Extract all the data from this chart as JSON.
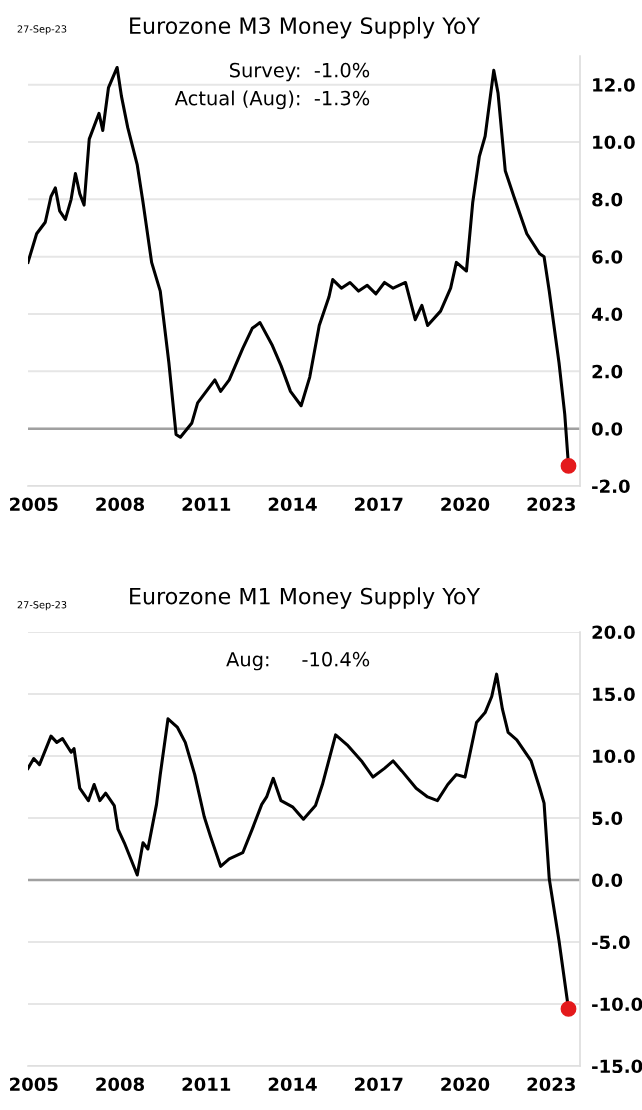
{
  "chart_data": [
    {
      "type": "line",
      "title": "Eurozone M3 Money Supply YoY",
      "annotations": [
        "27-Sep-23",
        "Survey:  -1.0%",
        "Actual (Aug):  -1.3%"
      ],
      "xlim": [
        2004.8,
        2024
      ],
      "xticks": [
        2005,
        2008,
        2011,
        2014,
        2017,
        2020,
        2023
      ],
      "ylim": [
        -2,
        13
      ],
      "yticks": [
        {
          "value": -2,
          "label": "-2.0"
        },
        {
          "value": 0,
          "label": "0.0"
        },
        {
          "value": 2,
          "label": "2.0"
        },
        {
          "value": 4,
          "label": "4.0"
        },
        {
          "value": 6,
          "label": "6.0"
        },
        {
          "value": 8,
          "label": "8.0"
        },
        {
          "value": 10,
          "label": "10.0"
        },
        {
          "value": 12,
          "label": "12.0"
        }
      ],
      "grid": "y",
      "ref_lines": [
        {
          "axis": "y",
          "value": 0,
          "color": "#a0a0a0"
        }
      ],
      "series": [
        {
          "color": "#000000",
          "x": [
            2004.8,
            2005.1,
            2005.4,
            2005.6,
            2005.75,
            2005.9,
            2006.1,
            2006.3,
            2006.45,
            2006.6,
            2006.75,
            2006.93,
            2007.27,
            2007.4,
            2007.6,
            2007.9,
            2008.05,
            2008.27,
            2008.6,
            2008.8,
            2009.1,
            2009.4,
            2009.7,
            2009.95,
            2010.1,
            2010.5,
            2010.7,
            2011.3,
            2011.5,
            2011.8,
            2012.27,
            2012.6,
            2012.87,
            2013.3,
            2013.6,
            2013.93,
            2014.3,
            2014.6,
            2014.93,
            2015.27,
            2015.4,
            2015.7,
            2016.0,
            2016.3,
            2016.6,
            2016.9,
            2017.2,
            2017.5,
            2017.93,
            2018.27,
            2018.5,
            2018.7,
            2019.15,
            2019.5,
            2019.7,
            2020.05,
            2020.27,
            2020.5,
            2020.7,
            2021.0,
            2021.15,
            2021.4,
            2021.7,
            2022.15,
            2022.6,
            2022.75,
            2022.93,
            2023.27,
            2023.47,
            2023.6
          ],
          "values": [
            5.8,
            6.8,
            7.2,
            8.1,
            8.4,
            7.6,
            7.3,
            8.0,
            8.9,
            8.2,
            7.8,
            10.1,
            11.0,
            10.4,
            11.9,
            12.6,
            11.6,
            10.5,
            9.2,
            7.9,
            5.8,
            4.8,
            2.3,
            -0.2,
            -0.3,
            0.2,
            0.9,
            1.7,
            1.3,
            1.7,
            2.8,
            3.5,
            3.7,
            2.9,
            2.2,
            1.3,
            0.8,
            1.8,
            3.6,
            4.6,
            5.2,
            4.9,
            5.1,
            4.8,
            5.0,
            4.7,
            5.1,
            4.9,
            5.1,
            3.8,
            4.3,
            3.6,
            4.1,
            4.9,
            5.8,
            5.5,
            7.9,
            9.5,
            10.2,
            12.5,
            11.7,
            9.0,
            8.1,
            6.8,
            6.1,
            6.0,
            4.8,
            2.3,
            0.5,
            -1.3
          ]
        },
        {
          "type": "scatter",
          "color": "#e41a1c",
          "x": [
            2023.6
          ],
          "values": [
            -1.3
          ]
        }
      ]
    },
    {
      "type": "line",
      "title": "Eurozone M1 Money Supply YoY",
      "annotations": [
        "27-Sep-23",
        "Aug:     -10.4%"
      ],
      "xlim": [
        2004.8,
        2024
      ],
      "xticks": [
        2005,
        2008,
        2011,
        2014,
        2017,
        2020,
        2023
      ],
      "ylim": [
        -15,
        20
      ],
      "yticks": [
        {
          "value": -15,
          "label": "-15.0"
        },
        {
          "value": -10,
          "label": "-10.0"
        },
        {
          "value": -5,
          "label": "-5.0"
        },
        {
          "value": 0,
          "label": "0.0"
        },
        {
          "value": 5,
          "label": "5.0"
        },
        {
          "value": 10,
          "label": "10.0"
        },
        {
          "value": 15,
          "label": "15.0"
        },
        {
          "value": 20,
          "label": "20.0"
        }
      ],
      "grid": "y",
      "ref_lines": [
        {
          "axis": "y",
          "value": 0,
          "color": "#a0a0a0"
        }
      ],
      "series": [
        {
          "color": "#000000",
          "x": [
            2004.8,
            2005.0,
            2005.2,
            2005.6,
            2005.8,
            2006.0,
            2006.3,
            2006.4,
            2006.6,
            2006.9,
            2007.1,
            2007.3,
            2007.5,
            2007.8,
            2007.93,
            2008.15,
            2008.6,
            2008.8,
            2008.97,
            2009.27,
            2009.4,
            2009.67,
            2010.0,
            2010.27,
            2010.6,
            2010.93,
            2011.15,
            2011.5,
            2011.8,
            2012.27,
            2012.6,
            2012.93,
            2013.1,
            2013.33,
            2013.6,
            2014.0,
            2014.38,
            2014.8,
            2015.04,
            2015.5,
            2015.9,
            2016.4,
            2016.8,
            2017.2,
            2017.5,
            2017.8,
            2018.3,
            2018.7,
            2019.04,
            2019.4,
            2019.7,
            2020.0,
            2020.4,
            2020.7,
            2020.93,
            2021.1,
            2021.3,
            2021.5,
            2021.8,
            2022.3,
            2022.6,
            2022.75,
            2022.93,
            2023.27,
            2023.6
          ],
          "values": [
            9.0,
            9.8,
            9.3,
            11.6,
            11.1,
            11.4,
            10.3,
            10.6,
            7.4,
            6.4,
            7.7,
            6.4,
            7.0,
            6.0,
            4.1,
            3.0,
            0.4,
            3.0,
            2.5,
            6.1,
            8.5,
            13.0,
            12.3,
            11.1,
            8.5,
            5.1,
            3.5,
            1.1,
            1.7,
            2.2,
            4.1,
            6.1,
            6.7,
            8.2,
            6.4,
            5.9,
            4.9,
            6.0,
            7.7,
            11.7,
            10.9,
            9.6,
            8.3,
            9.0,
            9.6,
            8.8,
            7.4,
            6.7,
            6.4,
            7.7,
            8.5,
            8.3,
            12.7,
            13.5,
            14.8,
            16.6,
            13.8,
            11.9,
            11.3,
            9.6,
            7.4,
            6.2,
            0.1,
            -4.9,
            -10.4
          ]
        },
        {
          "type": "scatter",
          "color": "#e41a1c",
          "x": [
            2023.6
          ],
          "values": [
            -10.4
          ]
        }
      ]
    }
  ]
}
